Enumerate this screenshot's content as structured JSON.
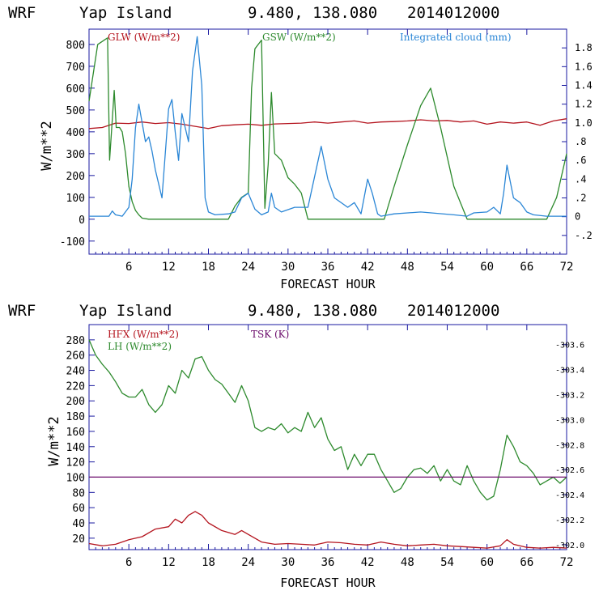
{
  "colors": {
    "frame": "#1a1aa0",
    "red": "#b4141e",
    "green": "#2d8a2d",
    "blue": "#2a86d6",
    "purple": "#6a0a6a",
    "text": "#000000"
  },
  "chart_data": [
    {
      "type": "line",
      "header": {
        "model": "WRF",
        "location": "Yap Island",
        "coords": "9.480, 138.080",
        "init": "2014012000"
      },
      "xlabel": "FORECAST HOUR",
      "ylabel": "W/m**2",
      "xlim": [
        0,
        72
      ],
      "ylim": [
        -160,
        870
      ],
      "y2lim": [
        -0.4,
        2.0
      ],
      "xticks": [
        "6",
        "12",
        "18",
        "24",
        "30",
        "36",
        "42",
        "48",
        "54",
        "60",
        "66",
        "72"
      ],
      "yticks": [
        "-100",
        "0",
        "100",
        "200",
        "300",
        "400",
        "500",
        "600",
        "700",
        "800"
      ],
      "y2ticks": [
        "-.2",
        "0",
        ".2",
        ".4",
        ".6",
        ".8",
        "1.0",
        "1.2",
        "1.4",
        "1.6",
        "1.8"
      ],
      "legend": [
        {
          "label": "GLW (W/m**2)",
          "color": "red"
        },
        {
          "label": "GSW (W/m**2)",
          "color": "green"
        },
        {
          "label": "Integrated cloud (mm)",
          "color": "blue"
        }
      ],
      "series": [
        {
          "name": "GLW (W/m**2)",
          "color": "red",
          "axis": "left",
          "x": [
            0,
            2,
            4,
            6,
            8,
            10,
            12,
            14,
            16,
            18,
            20,
            22,
            24,
            26,
            28,
            30,
            32,
            34,
            36,
            38,
            40,
            42,
            44,
            46,
            48,
            50,
            52,
            54,
            56,
            58,
            60,
            62,
            64,
            66,
            68,
            70,
            72
          ],
          "y": [
            415,
            420,
            440,
            438,
            445,
            438,
            442,
            435,
            425,
            415,
            428,
            432,
            435,
            430,
            436,
            438,
            440,
            445,
            440,
            445,
            450,
            440,
            445,
            447,
            450,
            455,
            450,
            452,
            445,
            450,
            435,
            445,
            440,
            445,
            430,
            450,
            460
          ]
        },
        {
          "name": "GSW (W/m**2)",
          "color": "green",
          "axis": "left",
          "x": [
            0,
            1.3,
            2.8,
            3.1,
            3.8,
            4.1,
            4.6,
            5.0,
            5.5,
            6.0,
            6.5,
            7.0,
            7.5,
            8.0,
            9.0,
            12.0,
            21.0,
            22.0,
            23.0,
            24.0,
            24.5,
            25.0,
            26.0,
            26.5,
            27.0,
            27.5,
            28.0,
            29.0,
            30.0,
            31.0,
            32.0,
            33.0,
            44.5,
            46.0,
            48.0,
            50.0,
            51.5,
            53.0,
            55.0,
            57.0,
            69.0,
            70.5,
            72.0
          ],
          "y": [
            540,
            800,
            830,
            270,
            590,
            420,
            420,
            400,
            300,
            150,
            80,
            40,
            20,
            5,
            0,
            0,
            0,
            60,
            100,
            120,
            600,
            780,
            820,
            50,
            250,
            580,
            300,
            270,
            190,
            160,
            120,
            0,
            0,
            150,
            340,
            520,
            600,
            420,
            150,
            0,
            0,
            100,
            300
          ]
        },
        {
          "name": "Integrated cloud (mm)",
          "color": "blue",
          "axis": "right",
          "x": [
            0,
            3,
            3.5,
            4,
            5,
            6,
            6.5,
            7,
            7.5,
            8,
            8.5,
            9,
            9.5,
            10,
            11,
            12,
            12.5,
            13,
            13.5,
            14,
            15,
            15.6,
            16.3,
            17,
            17.5,
            18,
            19,
            21,
            22,
            23,
            24,
            25,
            26,
            27,
            27.5,
            28,
            29,
            31,
            33,
            35,
            36,
            37,
            39,
            40,
            41,
            42,
            42.7,
            43.5,
            44,
            46,
            50,
            55,
            57,
            58,
            60,
            61,
            62,
            62.5,
            63,
            64,
            65,
            66,
            67,
            69,
            72
          ],
          "y": [
            0.005,
            0.005,
            0.06,
            0.02,
            0.005,
            0.1,
            0.4,
            0.95,
            1.2,
            1.0,
            0.8,
            0.85,
            0.7,
            0.5,
            0.2,
            1.15,
            1.25,
            0.9,
            0.6,
            1.1,
            0.8,
            1.55,
            1.92,
            1.4,
            0.2,
            0.05,
            0.02,
            0.03,
            0.05,
            0.2,
            0.25,
            0.08,
            0.02,
            0.05,
            0.25,
            0.1,
            0.05,
            0.1,
            0.1,
            0.75,
            0.4,
            0.2,
            0.1,
            0.15,
            0.03,
            0.4,
            0.25,
            0.03,
            0.005,
            0.03,
            0.05,
            0.02,
            0.005,
            0.04,
            0.05,
            0.1,
            0.03,
            0.25,
            0.55,
            0.2,
            0.15,
            0.05,
            0.02,
            0.005,
            0.005
          ]
        }
      ]
    },
    {
      "type": "line",
      "header": {
        "model": "WRF",
        "location": "Yap Island",
        "coords": "9.480, 138.080",
        "init": "2014012000"
      },
      "xlabel": "FORECAST HOUR",
      "ylabel": "W/m**2",
      "xlim": [
        0,
        72
      ],
      "ylim": [
        5,
        300
      ],
      "y2lim": [
        301.96,
        303.76
      ],
      "xticks": [
        "6",
        "12",
        "18",
        "24",
        "30",
        "36",
        "42",
        "48",
        "54",
        "60",
        "66",
        "72"
      ],
      "yticks": [
        "20",
        "40",
        "60",
        "80",
        "100",
        "120",
        "140",
        "160",
        "180",
        "200",
        "220",
        "240",
        "260",
        "280"
      ],
      "y2ticks": [
        "302.0",
        "302.2",
        "302.4",
        "302.6",
        "302.8",
        "303.0",
        "303.2",
        "303.4",
        "303.6"
      ],
      "legend": [
        {
          "label": "HFX (W/m**2)",
          "color": "red"
        },
        {
          "label": "LH  (W/m**2)",
          "color": "green"
        },
        {
          "label": "TSK (K)",
          "color": "purple"
        }
      ],
      "series": [
        {
          "name": "HFX (W/m**2)",
          "color": "red",
          "axis": "left",
          "x": [
            0,
            2,
            4,
            6,
            8,
            10,
            12,
            13,
            14,
            15,
            16,
            17,
            18,
            20,
            22,
            23,
            24,
            26,
            28,
            30,
            32,
            34,
            36,
            38,
            40,
            42,
            44,
            46,
            48,
            50,
            52,
            54,
            56,
            58,
            60,
            62,
            63,
            64,
            66,
            68,
            70,
            72
          ],
          "y": [
            13,
            10,
            12,
            18,
            22,
            32,
            35,
            45,
            40,
            50,
            55,
            50,
            40,
            30,
            25,
            30,
            25,
            15,
            12,
            13,
            12,
            11,
            15,
            14,
            12,
            11,
            15,
            12,
            10,
            11,
            12,
            10,
            9,
            8,
            7,
            10,
            18,
            12,
            8,
            7,
            8,
            7
          ]
        },
        {
          "name": "LH  (W/m**2)",
          "color": "green",
          "axis": "left",
          "x": [
            0,
            1,
            2,
            3,
            4,
            5,
            6,
            7,
            8,
            9,
            10,
            11,
            12,
            13,
            14,
            15,
            16,
            17,
            18,
            19,
            20,
            21,
            22,
            23,
            24,
            25,
            26,
            27,
            28,
            29,
            30,
            31,
            32,
            33,
            34,
            35,
            36,
            37,
            38,
            39,
            40,
            41,
            42,
            43,
            44,
            45,
            46,
            47,
            48,
            49,
            50,
            51,
            52,
            53,
            54,
            55,
            56,
            57,
            58,
            59,
            60,
            61,
            62,
            63,
            64,
            65,
            66,
            67,
            68,
            69,
            70,
            71,
            72
          ],
          "y": [
            280,
            260,
            248,
            238,
            225,
            210,
            205,
            205,
            215,
            195,
            185,
            195,
            220,
            210,
            240,
            230,
            255,
            258,
            240,
            228,
            222,
            210,
            198,
            220,
            200,
            165,
            160,
            165,
            162,
            170,
            158,
            165,
            160,
            185,
            165,
            178,
            150,
            135,
            140,
            110,
            130,
            115,
            130,
            130,
            110,
            95,
            80,
            85,
            100,
            110,
            112,
            105,
            115,
            95,
            110,
            95,
            90,
            115,
            95,
            80,
            70,
            75,
            110,
            155,
            140,
            120,
            115,
            105,
            90,
            95,
            100,
            92,
            100
          ]
        },
        {
          "name": "TSK (K)",
          "color": "purple",
          "axis": "right",
          "x": [
            0,
            72
          ],
          "y": [
            302.54,
            302.54
          ]
        }
      ]
    }
  ]
}
